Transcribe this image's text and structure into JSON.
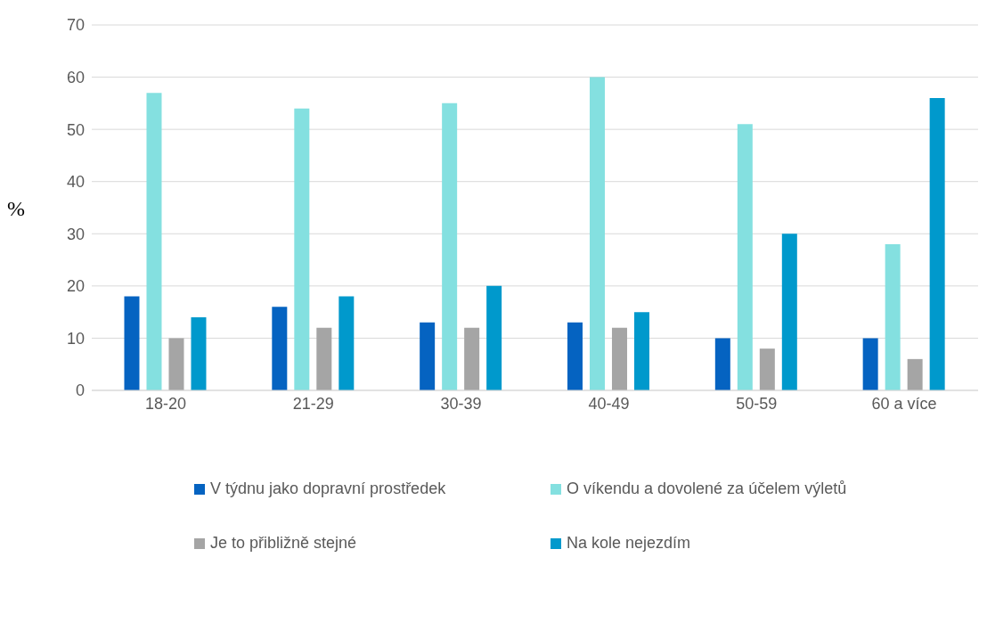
{
  "chart_data": {
    "type": "bar",
    "ylabel": "%",
    "categories": [
      "18-20",
      "21-29",
      "30-39",
      "40-49",
      "50-59",
      "60 a více"
    ],
    "series": [
      {
        "name": "V týdnu jako dopravní prostředek",
        "color": "#0563c1",
        "values": [
          18,
          16,
          13,
          13,
          10,
          10
        ]
      },
      {
        "name": "O víkendu a dovolené za účelem výletů",
        "color": "#84e0e0",
        "values": [
          57,
          54,
          55,
          60,
          51,
          28
        ]
      },
      {
        "name": "Je to přibližně stejné",
        "color": "#a5a5a5",
        "values": [
          10,
          12,
          12,
          12,
          8,
          6
        ]
      },
      {
        "name": "Na kole nejezdím",
        "color": "#0099cc",
        "values": [
          14,
          18,
          20,
          15,
          30,
          56
        ]
      }
    ],
    "ylim": [
      0,
      70
    ],
    "yticks": [
      0,
      10,
      20,
      30,
      40,
      50,
      60,
      70
    ],
    "grid": "y",
    "legend": "bottom"
  }
}
